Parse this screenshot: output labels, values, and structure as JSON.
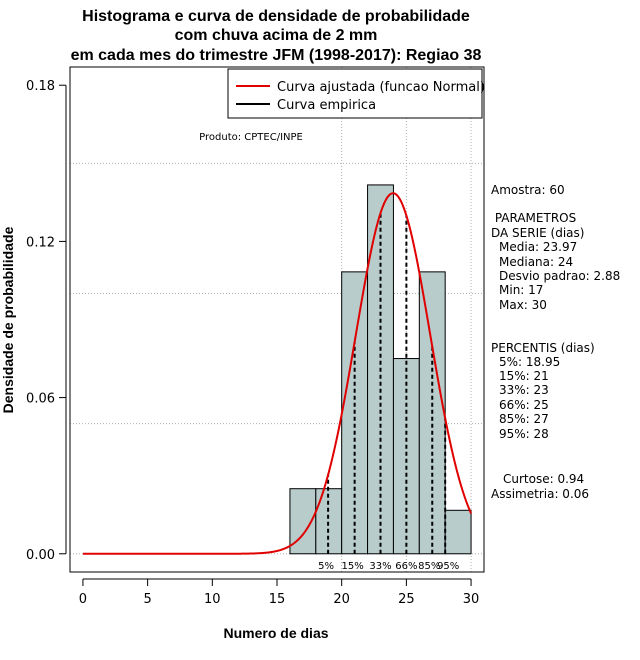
{
  "chart_data": {
    "type": "bar",
    "title": [
      "Histograma e curva de densidade de probabilidade",
      "com chuva acima de 2 mm",
      "em cada mes do trimestre JFM (1998-2017): Regiao 38"
    ],
    "xlabel": "Numero de dias",
    "ylabel": "Densidade de probabilidade",
    "xlim": [
      -1,
      31
    ],
    "ylim": [
      -0.007,
      0.187
    ],
    "x_ticks": [
      0,
      5,
      10,
      15,
      20,
      25,
      30
    ],
    "x_tick_labels": [
      "0",
      "5",
      "10",
      "15",
      "20",
      "25",
      "30"
    ],
    "y_ticks": [
      0,
      0.06,
      0.12,
      0.18
    ],
    "y_tick_labels": [
      "0.00",
      "0.06",
      "0.12",
      "0.18"
    ],
    "gridlines_y": [
      0,
      0.05,
      0.1,
      0.15
    ],
    "gridlines_x": [
      20,
      25,
      30
    ],
    "histogram": {
      "bins": [
        {
          "x0": 16,
          "x1": 18,
          "density": 0.025
        },
        {
          "x0": 18,
          "x1": 20,
          "density": 0.025
        },
        {
          "x0": 20,
          "x1": 22,
          "density": 0.1083
        },
        {
          "x0": 22,
          "x1": 24,
          "density": 0.1417
        },
        {
          "x0": 24,
          "x1": 26,
          "density": 0.075
        },
        {
          "x0": 26,
          "x1": 28,
          "density": 0.1083
        },
        {
          "x0": 28,
          "x1": 30,
          "density": 0.0167
        }
      ],
      "fill": "#b7cccb",
      "stroke": "#000000"
    },
    "normal_curve": {
      "mean": 23.97,
      "sd": 2.88,
      "x_range": [
        0,
        30
      ],
      "color": "#e00000"
    },
    "empirical_curve_color": "#000000",
    "percentile_lines": [
      {
        "label": "5%",
        "x": 18.95
      },
      {
        "label": "15%",
        "x": 21
      },
      {
        "label": "33%",
        "x": 23
      },
      {
        "label": "66%",
        "x": 25
      },
      {
        "label": "85%",
        "x": 27
      },
      {
        "label": "95%",
        "x": 28
      }
    ],
    "legend": {
      "placement": "top-right",
      "entries": [
        {
          "label": "Curva ajustada (funcao Normal)",
          "color": "#e00000"
        },
        {
          "label": "Curva empirica",
          "color": "#000000"
        }
      ]
    },
    "annotation": "Produto: CPTEC/INPE",
    "sidebar": {
      "amostra": "Amostra: 60",
      "parametros_title": [
        " PARAMETROS",
        "DA SERIE (dias)"
      ],
      "parametros": [
        "Media: 23.97",
        "Mediana: 24",
        "Desvio padrao: 2.88",
        "Min: 17",
        "Max: 30"
      ],
      "percentis_title": "PERCENTIS (dias)",
      "percentis": [
        "5%: 18.95",
        "15%: 21",
        "33%: 23",
        "66%: 25",
        "85%: 27",
        "95%: 28"
      ],
      "stats": [
        "Curtose: 0.94",
        "Assimetria: 0.06"
      ]
    }
  }
}
